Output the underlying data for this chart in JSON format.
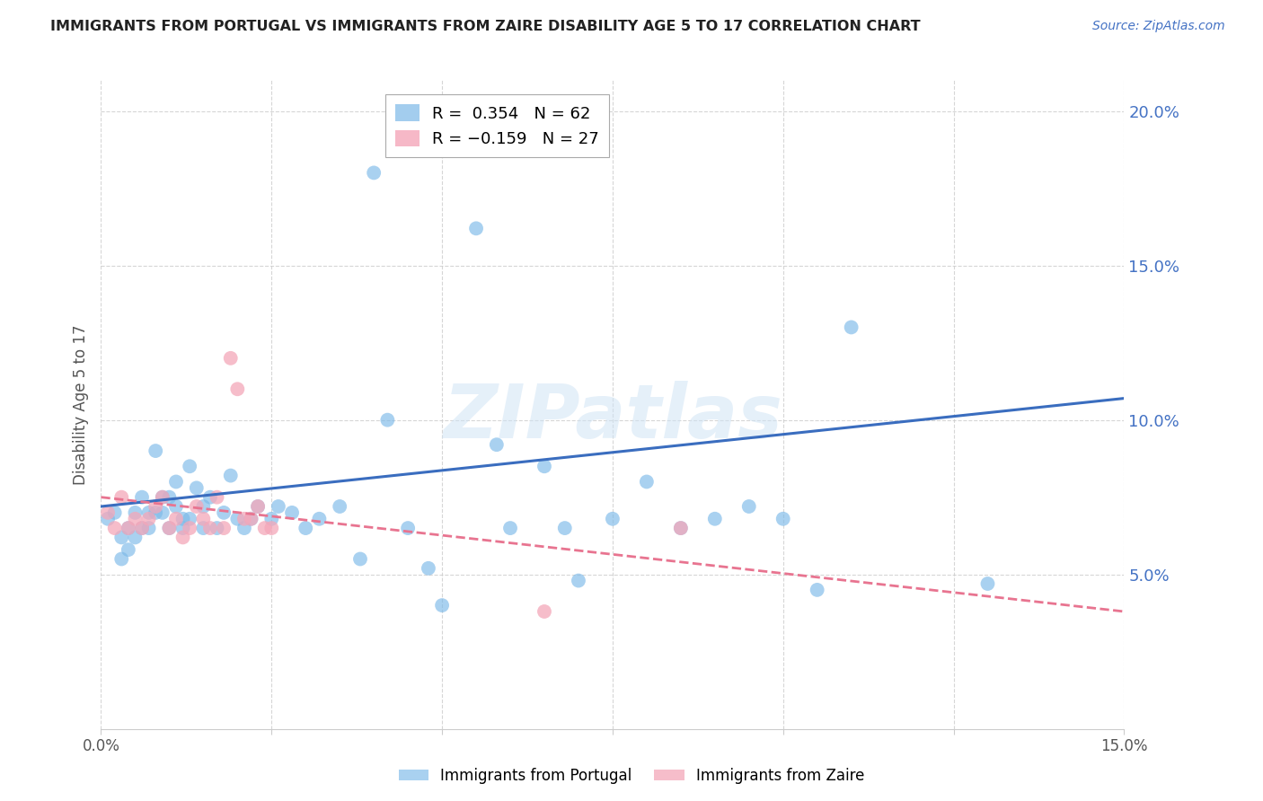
{
  "title": "IMMIGRANTS FROM PORTUGAL VS IMMIGRANTS FROM ZAIRE DISABILITY AGE 5 TO 17 CORRELATION CHART",
  "source": "Source: ZipAtlas.com",
  "ylabel": "Disability Age 5 to 17",
  "x_min": 0.0,
  "x_max": 0.15,
  "y_min": 0.0,
  "y_max": 0.21,
  "y_ticks": [
    0.05,
    0.1,
    0.15,
    0.2
  ],
  "y_tick_labels": [
    "5.0%",
    "10.0%",
    "15.0%",
    "20.0%"
  ],
  "x_ticks": [
    0.0,
    0.025,
    0.05,
    0.075,
    0.1,
    0.125,
    0.15
  ],
  "x_tick_labels": [
    "0.0%",
    "",
    "",
    "",
    "",
    "",
    "15.0%"
  ],
  "watermark": "ZIPatlas",
  "portugal_color": "#7cb9e8",
  "zaire_color": "#f4a7b9",
  "trend_portugal_color": "#3a6dbf",
  "trend_zaire_color": "#e87490",
  "portugal_x": [
    0.001,
    0.002,
    0.003,
    0.003,
    0.004,
    0.004,
    0.005,
    0.005,
    0.006,
    0.006,
    0.007,
    0.007,
    0.008,
    0.008,
    0.009,
    0.009,
    0.01,
    0.01,
    0.011,
    0.011,
    0.012,
    0.012,
    0.013,
    0.013,
    0.014,
    0.015,
    0.015,
    0.016,
    0.017,
    0.018,
    0.019,
    0.02,
    0.021,
    0.022,
    0.023,
    0.025,
    0.026,
    0.028,
    0.03,
    0.032,
    0.035,
    0.038,
    0.04,
    0.042,
    0.045,
    0.048,
    0.05,
    0.055,
    0.058,
    0.06,
    0.065,
    0.068,
    0.07,
    0.075,
    0.08,
    0.085,
    0.09,
    0.095,
    0.1,
    0.105,
    0.11,
    0.13
  ],
  "portugal_y": [
    0.068,
    0.07,
    0.062,
    0.055,
    0.065,
    0.058,
    0.07,
    0.062,
    0.075,
    0.065,
    0.065,
    0.07,
    0.09,
    0.07,
    0.07,
    0.075,
    0.065,
    0.075,
    0.08,
    0.072,
    0.065,
    0.068,
    0.085,
    0.068,
    0.078,
    0.065,
    0.072,
    0.075,
    0.065,
    0.07,
    0.082,
    0.068,
    0.065,
    0.068,
    0.072,
    0.068,
    0.072,
    0.07,
    0.065,
    0.068,
    0.072,
    0.055,
    0.18,
    0.1,
    0.065,
    0.052,
    0.04,
    0.162,
    0.092,
    0.065,
    0.085,
    0.065,
    0.048,
    0.068,
    0.08,
    0.065,
    0.068,
    0.072,
    0.068,
    0.045,
    0.13,
    0.047
  ],
  "zaire_x": [
    0.001,
    0.002,
    0.003,
    0.004,
    0.005,
    0.006,
    0.007,
    0.008,
    0.009,
    0.01,
    0.011,
    0.012,
    0.013,
    0.014,
    0.015,
    0.016,
    0.017,
    0.018,
    0.019,
    0.02,
    0.021,
    0.022,
    0.023,
    0.024,
    0.025,
    0.065,
    0.085
  ],
  "zaire_y": [
    0.07,
    0.065,
    0.075,
    0.065,
    0.068,
    0.065,
    0.068,
    0.072,
    0.075,
    0.065,
    0.068,
    0.062,
    0.065,
    0.072,
    0.068,
    0.065,
    0.075,
    0.065,
    0.12,
    0.11,
    0.068,
    0.068,
    0.072,
    0.065,
    0.065,
    0.038,
    0.065
  ],
  "portugal_trend_x0": 0.0,
  "portugal_trend_y0": 0.072,
  "portugal_trend_x1": 0.15,
  "portugal_trend_y1": 0.107,
  "zaire_trend_x0": 0.0,
  "zaire_trend_y0": 0.075,
  "zaire_trend_x1": 0.15,
  "zaire_trend_y1": 0.038
}
